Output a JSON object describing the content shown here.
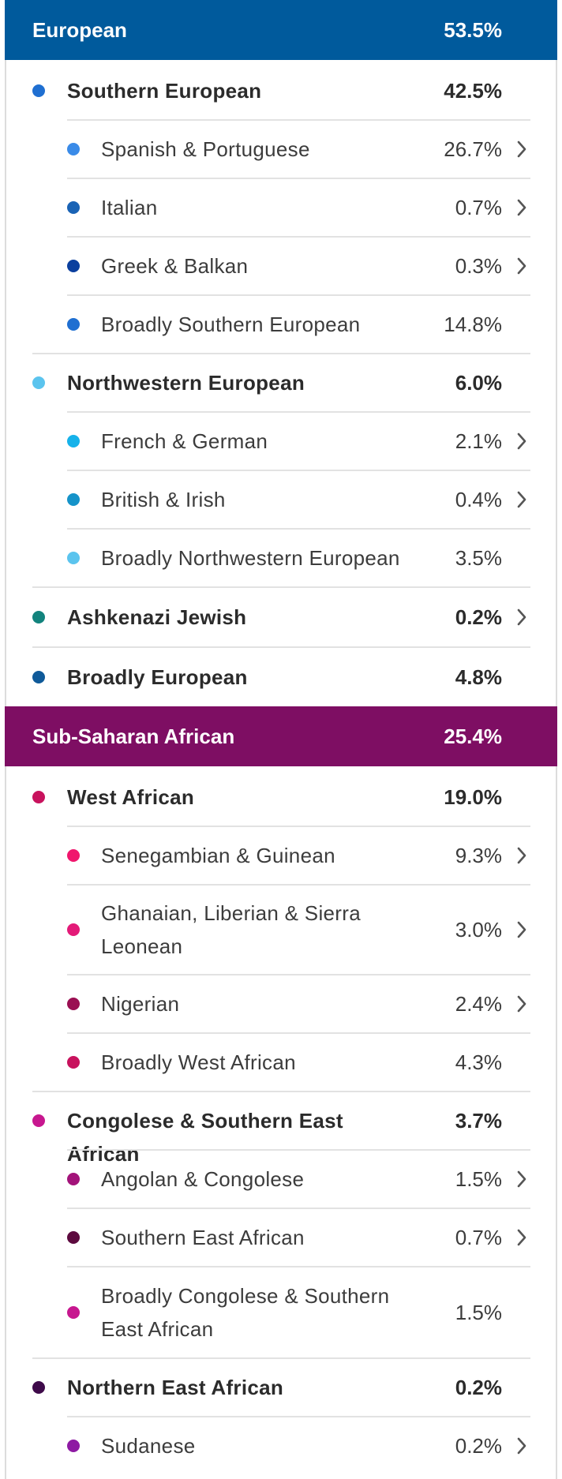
{
  "colors": {
    "european_header": "#005a9c",
    "african_header": "#7e0e63",
    "chevron": "#555555",
    "separator": "#e2e2e2"
  },
  "chevron_icon": "chevron-right-icon",
  "categories": [
    {
      "name": "European",
      "percent": "53.5%",
      "rows": [
        {
          "label": "Southern European",
          "percent": "42.5%",
          "level": "sub",
          "color": "#1f6fd1",
          "chevron": false
        },
        {
          "label": "Spanish & Portuguese",
          "percent": "26.7%",
          "level": "reg",
          "color": "#3a8be8",
          "chevron": true
        },
        {
          "label": "Italian",
          "percent": "0.7%",
          "level": "reg",
          "color": "#1a63b5",
          "chevron": true
        },
        {
          "label": "Greek & Balkan",
          "percent": "0.3%",
          "level": "reg",
          "color": "#0b3f9e",
          "chevron": true
        },
        {
          "label": "Broadly Southern European",
          "percent": "14.8%",
          "level": "reg",
          "color": "#1f6fd1",
          "chevron": false
        },
        {
          "label": "Northwestern European",
          "percent": "6.0%",
          "level": "sub",
          "color": "#5bc4ee",
          "chevron": false
        },
        {
          "label": "French & German",
          "percent": "2.1%",
          "level": "reg",
          "color": "#16b2ea",
          "chevron": true
        },
        {
          "label": "British & Irish",
          "percent": "0.4%",
          "level": "reg",
          "color": "#1593c9",
          "chevron": true
        },
        {
          "label": "Broadly Northwestern European",
          "percent": "3.5%",
          "level": "reg",
          "color": "#5bc4ee",
          "chevron": false
        },
        {
          "label": "Ashkenazi Jewish",
          "percent": "0.2%",
          "level": "sub",
          "color": "#12837d",
          "chevron": true
        },
        {
          "label": "Broadly European",
          "percent": "4.8%",
          "level": "sub",
          "color": "#0f5a99",
          "chevron": false
        }
      ]
    },
    {
      "name": "Sub-Saharan African",
      "percent": "25.4%",
      "rows": [
        {
          "label": "West African",
          "percent": "19.0%",
          "level": "sub",
          "color": "#c8125d",
          "chevron": false
        },
        {
          "label": "Senegambian & Guinean",
          "percent": "9.3%",
          "level": "reg",
          "color": "#f0166d",
          "chevron": true
        },
        {
          "label": "Ghanaian, Liberian & Sierra",
          "label2": "Leonean",
          "percent": "3.0%",
          "level": "reg",
          "color": "#e31a78",
          "chevron": true
        },
        {
          "label": "Nigerian",
          "percent": "2.4%",
          "level": "reg",
          "color": "#9a0f52",
          "chevron": true
        },
        {
          "label": "Broadly West African",
          "percent": "4.3%",
          "level": "reg",
          "color": "#c8125d",
          "chevron": false
        },
        {
          "label": "Congolese & Southern East African",
          "percent": "3.7%",
          "level": "sub",
          "color": "#c7178f",
          "chevron": false
        },
        {
          "label": "Angolan & Congolese",
          "percent": "1.5%",
          "level": "reg",
          "color": "#a3137a",
          "chevron": true
        },
        {
          "label": "Southern East African",
          "percent": "0.7%",
          "level": "reg",
          "color": "#5d0a3f",
          "chevron": true
        },
        {
          "label": "Broadly Congolese & Southern",
          "label2": "East African",
          "percent": "1.5%",
          "level": "reg",
          "color": "#c7178f",
          "chevron": false
        },
        {
          "label": "Northern East African",
          "percent": "0.2%",
          "level": "sub",
          "color": "#3e0a4a",
          "chevron": false
        },
        {
          "label": "Sudanese",
          "percent": "0.2%",
          "level": "reg",
          "color": "#8e1aa3",
          "chevron": true
        }
      ]
    }
  ]
}
